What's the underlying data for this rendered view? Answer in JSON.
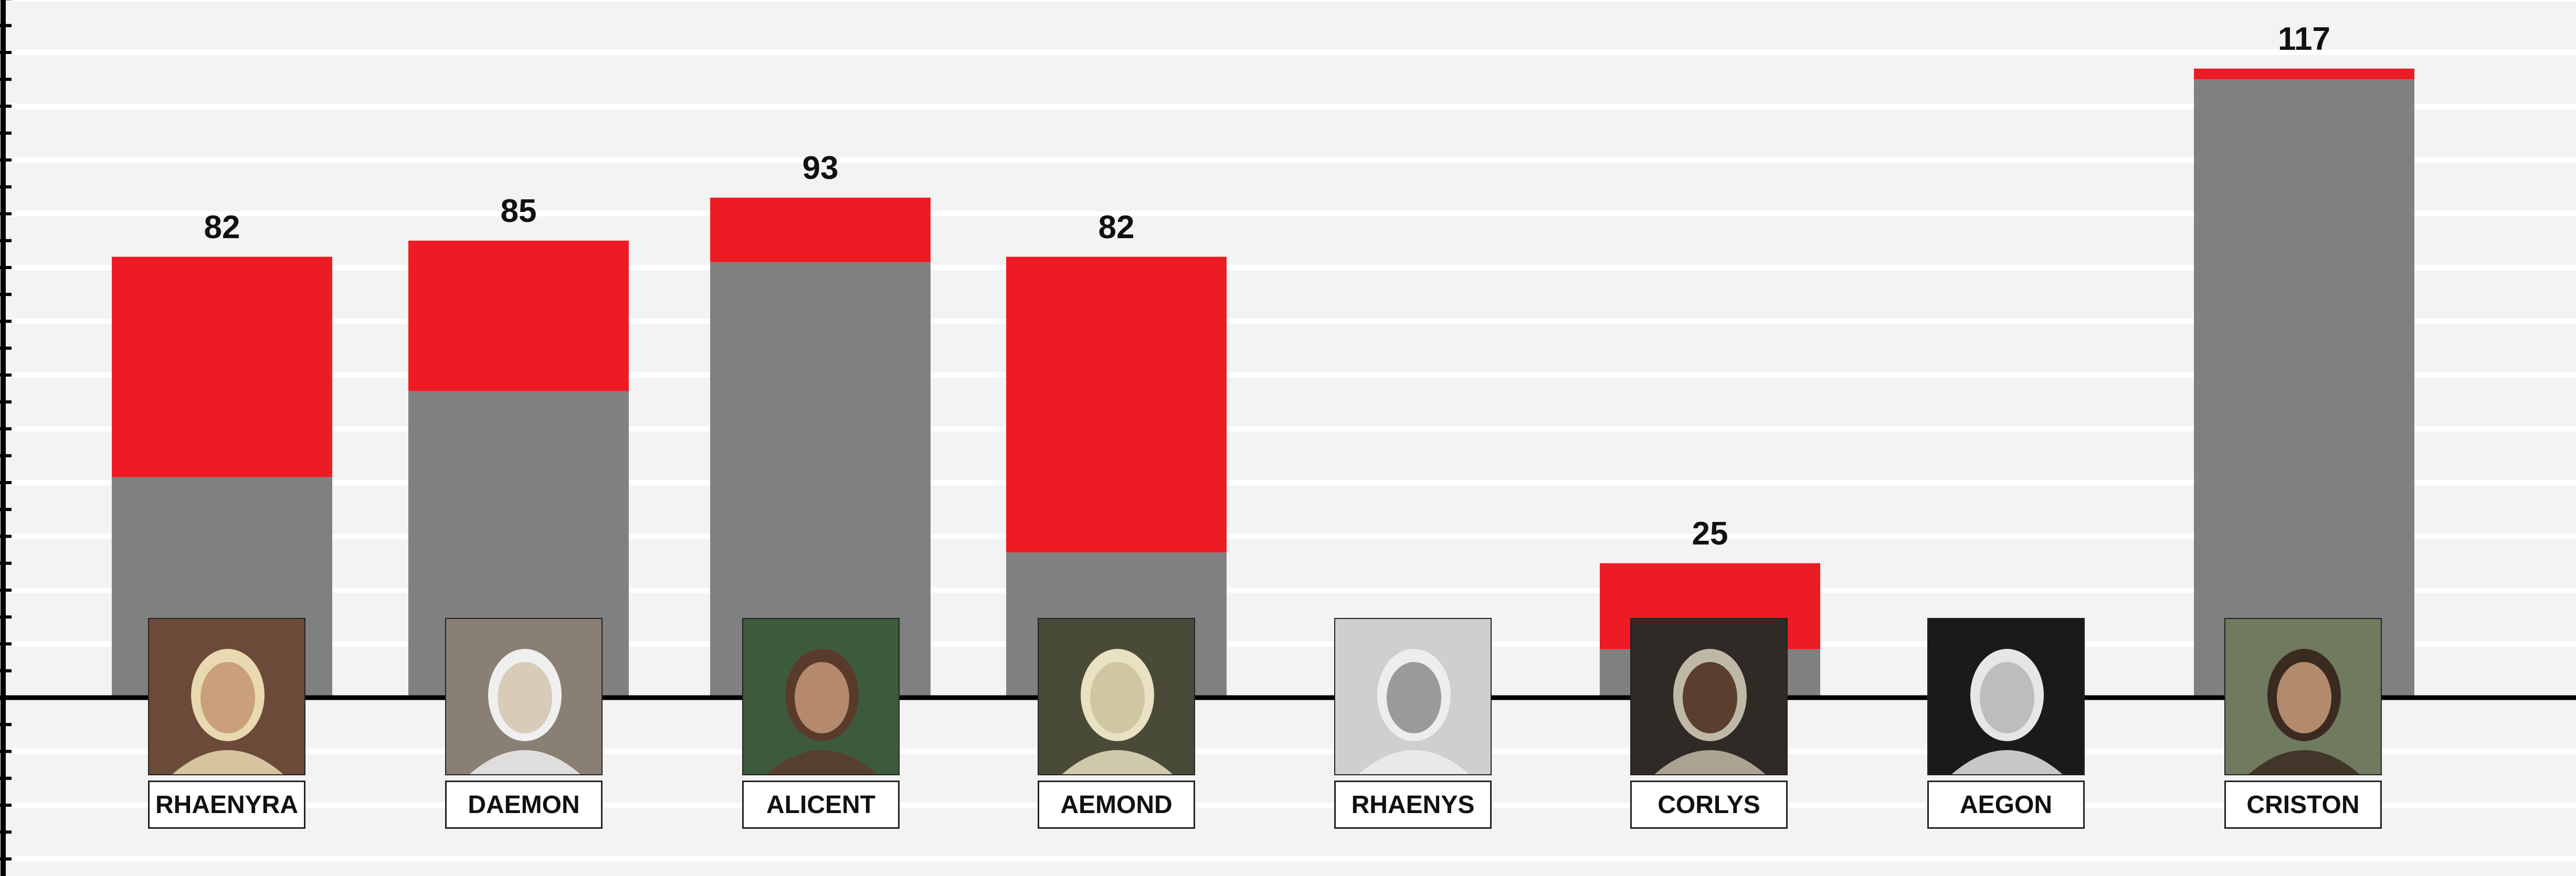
{
  "chart_data": {
    "type": "bar",
    "stacked": true,
    "categories": [
      "RHAENYRA",
      "DAEMON",
      "ALICENT",
      "AEMOND",
      "RHAENYS",
      "CORLYS",
      "AEGON",
      "CRISTON"
    ],
    "totals": [
      "82",
      "85",
      "93",
      "82",
      "",
      "25",
      "",
      "117"
    ],
    "series": [
      {
        "values": [
          41,
          57,
          81,
          27,
          0,
          9,
          0,
          115
        ],
        "color": "#808080"
      },
      {
        "values": [
          41,
          28,
          12,
          55,
          0,
          16,
          0,
          2
        ],
        "color": "#ed1c24"
      }
    ],
    "ylim": [
      -30,
      130
    ],
    "grid": true,
    "colors": {
      "background": "#f3f3f3",
      "gridline": "#ffffff",
      "axis": "#000000"
    }
  }
}
